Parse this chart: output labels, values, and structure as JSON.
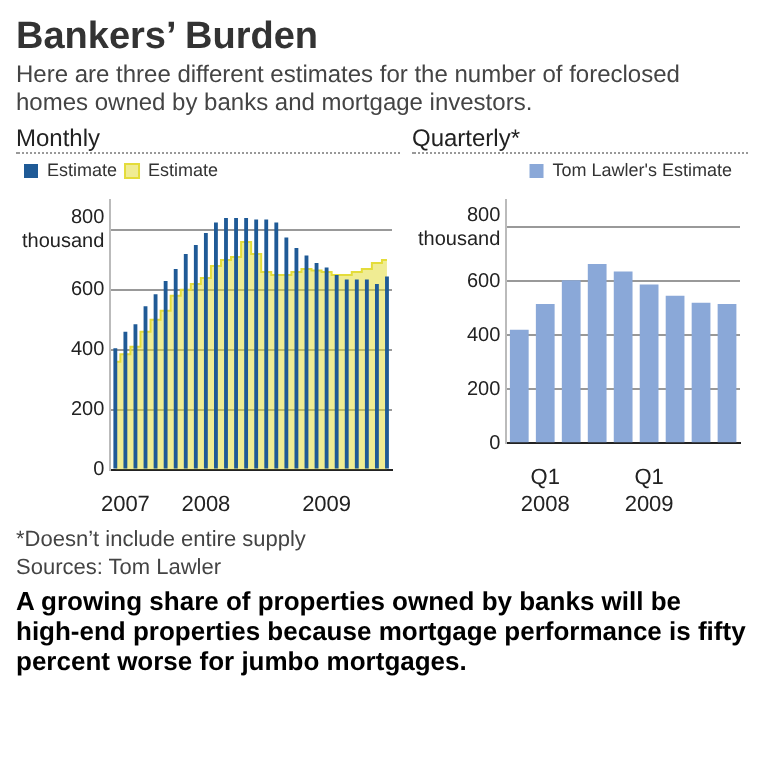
{
  "chart_data": [
    {
      "type": "bar",
      "title": "Bankers’ Burden",
      "subtitle": "Here are three different estimates for the number of foreclosed homes owned by banks and mortgage investors.",
      "xlabel": "Monthly",
      "categories": [
        null,
        "2007",
        null,
        null,
        null,
        null,
        null,
        null,
        null,
        "2008",
        null,
        null,
        null,
        null,
        null,
        null,
        null,
        null,
        null,
        null,
        null,
        "2009",
        null,
        null,
        null,
        null,
        null,
        null
      ],
      "series": [
        {
          "name": "Estimate",
          "type": "area",
          "color": "#e4dc3a",
          "values": [
            360,
            385,
            410,
            460,
            500,
            530,
            580,
            600,
            620,
            640,
            680,
            700,
            710,
            760,
            720,
            660,
            650,
            650,
            660,
            670,
            665,
            660,
            650,
            650,
            660,
            670,
            690,
            700
          ]
        },
        {
          "name": "Estimate",
          "type": "bar",
          "color": "#1f5a96",
          "values": [
            405,
            460,
            485,
            545,
            585,
            630,
            670,
            720,
            750,
            790,
            825,
            840,
            840,
            840,
            835,
            835,
            825,
            775,
            740,
            715,
            690,
            675,
            650,
            635,
            635,
            635,
            620,
            645
          ]
        }
      ],
      "ylim": [
        0,
        900
      ],
      "yticks": [
        0,
        200,
        400,
        600,
        {
          "value": 800,
          "label": "800 thousand"
        }
      ],
      "grid": "y",
      "legend": "top"
    },
    {
      "type": "bar",
      "xlabel": "Quarterly*",
      "categories": [
        null,
        "Q1 2008",
        null,
        null,
        null,
        "Q1 2009",
        null,
        null,
        null
      ],
      "series": [
        {
          "name": "Tom Lawler's Estimate",
          "color": "#8aa8d8",
          "values": [
            420,
            515,
            603,
            663,
            635,
            587,
            546,
            520,
            515
          ]
        }
      ],
      "ylim": [
        0,
        900
      ],
      "yticks": [
        0,
        200,
        400,
        600,
        {
          "value": 800,
          "label": "800 thousand"
        }
      ],
      "grid": "y",
      "legend": "top right",
      "annotations": [
        "*Doesn’t include entire supply",
        "Sources: Tom Lawler",
        "A growing share of properties owned by banks will be high-end properties because mortgage performance is fifty percent worse for jumbo mortgages."
      ]
    }
  ]
}
